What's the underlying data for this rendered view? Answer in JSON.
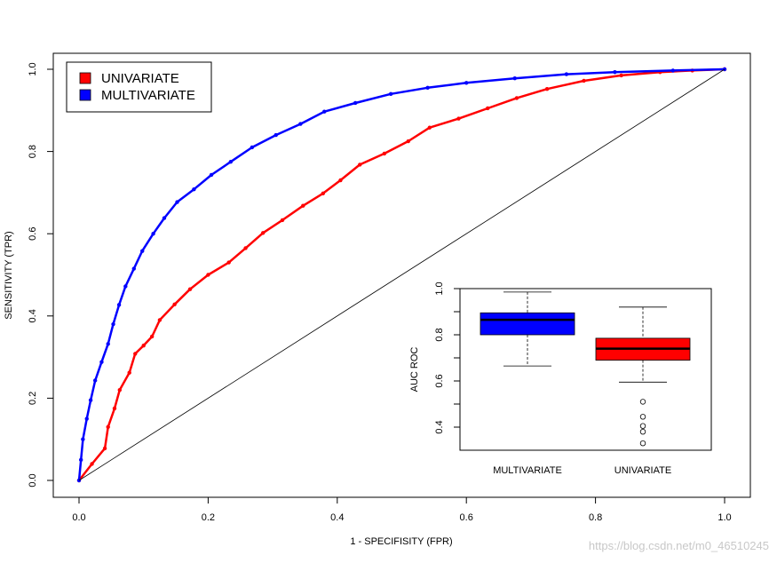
{
  "chart_data": [
    {
      "type": "line",
      "title": "",
      "xlabel": "1 - SPECIFISITY (FPR)",
      "ylabel": "SENSITIVITY (TPR)",
      "xlim": [
        0,
        1
      ],
      "ylim": [
        0,
        1
      ],
      "xticks": [
        "0.0",
        "0.2",
        "0.4",
        "0.6",
        "0.8",
        "1.0"
      ],
      "yticks": [
        "0.0",
        "0.2",
        "0.4",
        "0.6",
        "0.8",
        "1.0"
      ],
      "legend": [
        "UNIVARIATE",
        "MULTIVARIATE"
      ],
      "legend_position": "top-left",
      "series": [
        {
          "name": "UNIVARIATE",
          "color": "#ff0000",
          "x": [
            0,
            0.02,
            0.04,
            0.045,
            0.055,
            0.063,
            0.078,
            0.087,
            0.1,
            0.113,
            0.125,
            0.148,
            0.172,
            0.2,
            0.232,
            0.258,
            0.285,
            0.315,
            0.347,
            0.378,
            0.405,
            0.435,
            0.473,
            0.51,
            0.543,
            0.588,
            0.633,
            0.678,
            0.725,
            0.782,
            0.84,
            0.9,
            0.95,
            1.0
          ],
          "y": [
            0,
            0.04,
            0.078,
            0.13,
            0.175,
            0.22,
            0.262,
            0.308,
            0.328,
            0.35,
            0.39,
            0.428,
            0.465,
            0.5,
            0.53,
            0.565,
            0.602,
            0.633,
            0.668,
            0.698,
            0.73,
            0.768,
            0.795,
            0.825,
            0.858,
            0.88,
            0.905,
            0.93,
            0.952,
            0.972,
            0.985,
            0.993,
            0.997,
            1.0
          ]
        },
        {
          "name": "MULTIVARIATE",
          "color": "#0000ff",
          "x": [
            0,
            0.003,
            0.006,
            0.012,
            0.018,
            0.025,
            0.035,
            0.045,
            0.053,
            0.062,
            0.072,
            0.085,
            0.098,
            0.115,
            0.132,
            0.152,
            0.178,
            0.205,
            0.235,
            0.268,
            0.305,
            0.343,
            0.38,
            0.428,
            0.483,
            0.54,
            0.6,
            0.675,
            0.755,
            0.83,
            0.92,
            1.0
          ],
          "y": [
            0,
            0.05,
            0.1,
            0.15,
            0.195,
            0.243,
            0.288,
            0.332,
            0.38,
            0.427,
            0.472,
            0.515,
            0.558,
            0.6,
            0.638,
            0.677,
            0.708,
            0.743,
            0.775,
            0.81,
            0.84,
            0.867,
            0.897,
            0.918,
            0.94,
            0.955,
            0.967,
            0.978,
            0.988,
            0.993,
            0.997,
            1.0
          ]
        },
        {
          "name": "reference diagonal",
          "color": "#000000",
          "x": [
            0,
            1
          ],
          "y": [
            0,
            1
          ]
        }
      ]
    },
    {
      "type": "boxplot",
      "ylabel": "AUC ROC",
      "ylim": [
        0.3,
        1.0
      ],
      "yticks": [
        "0.4",
        "0.6",
        "0.8",
        "1.0"
      ],
      "categories": [
        "MULTIVARIATE",
        "UNIVARIATE"
      ],
      "boxes": [
        {
          "name": "MULTIVARIATE",
          "color": "#0000ff",
          "whisker_low": 0.665,
          "q1": 0.8,
          "median": 0.865,
          "q3": 0.895,
          "whisker_high": 0.985,
          "outliers": []
        },
        {
          "name": "UNIVARIATE",
          "color": "#ff0000",
          "whisker_low": 0.595,
          "q1": 0.69,
          "median": 0.74,
          "q3": 0.785,
          "whisker_high": 0.92,
          "outliers": [
            0.51,
            0.445,
            0.405,
            0.38,
            0.33
          ]
        }
      ]
    }
  ],
  "watermark": "https://blog.csdn.net/m0_46510245"
}
